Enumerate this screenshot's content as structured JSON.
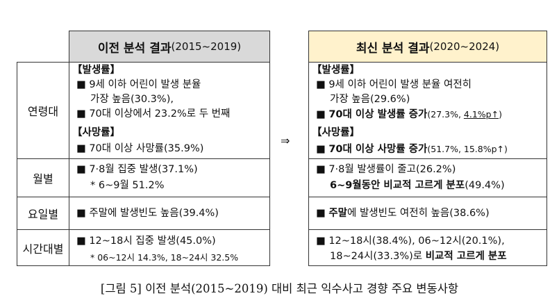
{
  "header_prev": {
    "title": "이전 분석 결과",
    "period": "(2015~2019)"
  },
  "header_new": {
    "title": "최신 분석 결과",
    "period": "(2020~2024)"
  },
  "arrow": "⇒",
  "rows": {
    "age": "연령대",
    "month": "월별",
    "weekday": "요일별",
    "time": "시간대별"
  },
  "prev": {
    "age_inc_tag": "【발생률】",
    "age_inc_1a": "9세 이하 어린이 발생 분율",
    "age_inc_1b": "가장 높음(30.3%),",
    "age_inc_2": "70대 이상에서 23.2%로 두 번째",
    "age_death_tag": "【사망률】",
    "age_death_1": "70대 이상 사망률(35.9%)",
    "month_1": "7·8월 집중 발생(37.1%)",
    "month_2": "* 6~9월 51.2%",
    "weekday_1": "주말에 발생빈도 높음(39.4%)",
    "time_1": "12~18시 집중 발생(45.0%)",
    "time_2": "* 06~12시 14.3%, 18~24시 32.5%"
  },
  "new": {
    "age_inc_tag": "【발생률】",
    "age_inc_1a": "9세 이하 어린이 발생 분율 여전히",
    "age_inc_1b": "가장 높음(29.6%)",
    "age_inc_2_bold": "70대 이상 발생률 증가",
    "age_inc_2_rest_a": "(27.3%, ",
    "age_inc_2_rest_u": "4.1%p↑",
    "age_inc_2_rest_b": ")",
    "age_death_tag": "【사망률】",
    "age_death_1_bold": "70대 이상 사망률 증가",
    "age_death_1_rest": "(51.7%, 15.8%p↑)",
    "month_1": "7·8월 발생률이 줄고(26.2%)",
    "month_2_bold": "6~9월동안 비교적 고르게 분포",
    "month_2_rest": "(49.4%)",
    "weekday_bold": "주말",
    "weekday_rest": "에 발생빈도 여전히 높음(38.6%)",
    "time_1": "12~18시(38.4%), 06~12시(20.1%),",
    "time_2_a": "18~24시(33.3%)로 ",
    "time_2_bold": "비교적 고르게 분포"
  },
  "bullet": "■",
  "caption": "[그림 5] 이전 분석(2015~2019) 대비 최근 익수사고 경향 주요 변동사항"
}
